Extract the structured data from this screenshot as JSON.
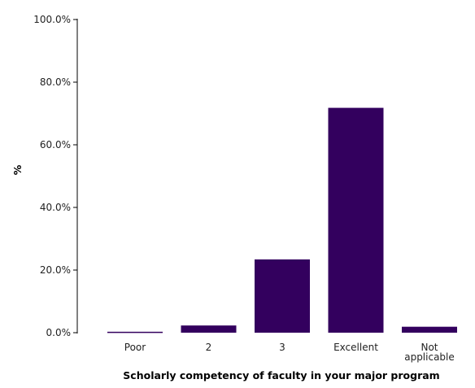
{
  "chart_data": {
    "type": "bar",
    "categories": [
      [
        "Poor"
      ],
      [
        "2"
      ],
      [
        "3"
      ],
      [
        "Excellent"
      ],
      [
        "Not",
        "applicable"
      ]
    ],
    "values": [
      0.3,
      2.3,
      23.4,
      71.8,
      1.9
    ],
    "xlabel": "Scholarly competency of faculty in your major program",
    "ylabel": "%",
    "ylim": [
      0,
      100
    ],
    "yticks": [
      "0.0%",
      "20.0%",
      "40.0%",
      "60.0%",
      "80.0%",
      "100.0%"
    ],
    "ytick_values": [
      0,
      20,
      40,
      60,
      80,
      100
    ],
    "grid": false,
    "legend": "none",
    "bar_color": "#33005e"
  }
}
